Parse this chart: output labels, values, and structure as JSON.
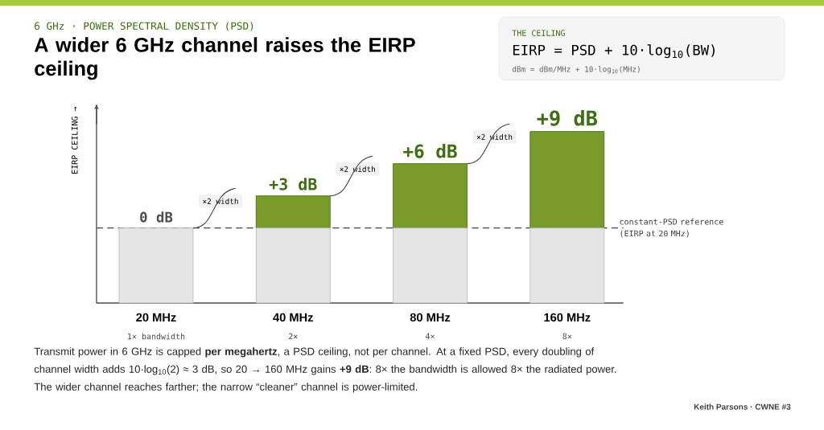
{
  "chart_data": {
    "type": "bar",
    "subtitle": "6 GHz · POWER SPECTRAL DENSITY (PSD)",
    "title": "A wider 6 GHz channel raises the EIRP ceiling",
    "ylabel": "EIRP CEILING →",
    "categories": [
      "20 MHz",
      "40 MHz",
      "80 MHz",
      "160 MHz"
    ],
    "stacked": true,
    "series": [
      {
        "color": "#e5e5e5",
        "values": [
          7,
          7,
          7,
          7
        ]
      },
      {
        "color": "#789b29",
        "values": [
          0,
          3,
          6,
          9
        ],
        "value_labels": [
          "0 dB",
          "+3 dB",
          "+6 dB",
          "+9 dB"
        ]
      }
    ],
    "ref_lines": [
      {
        "axis": "y",
        "value": 7,
        "label": "constant-PSD reference (EIRP at 20 MHz)",
        "line_style": "dashed",
        "color": "#444444"
      }
    ],
    "annotations": [
      "1× bandwidth",
      "2×",
      "4×",
      "8×",
      "×2 width",
      "×2 width",
      "×2 width",
      "THE CEILING",
      "EIRP = PSD + 10·log$_{10}$(BW)",
      "dBm = dBm/MHz + 10·log$_{10}$(MHz)",
      "Transmit power in 6 GHz is capped **per megahertz**, a PSD ceiling, not per channel. At a fixed PSD, every doubling of channel width adds 10·log$_{10}$(2) ≈ 3 dB, so 20 → 160 MHz gains **+9 dB**: 8× the bandwidth is allowed 8× the radiated power. The wider channel reaches farther; the narrow “cleaner” channel is power-limited.",
      "Keith Parsons · CWNE #3"
    ]
  }
}
